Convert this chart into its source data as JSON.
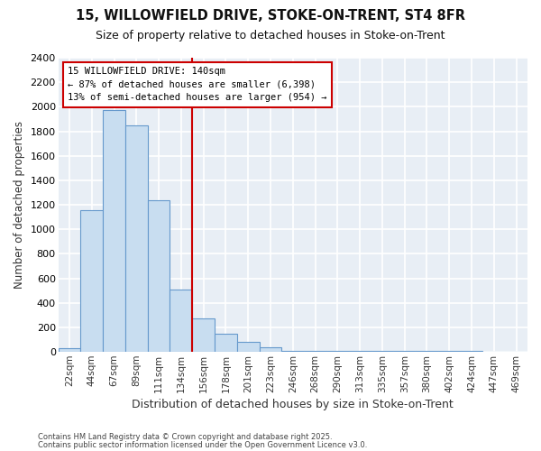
{
  "title1": "15, WILLOWFIELD DRIVE, STOKE-ON-TRENT, ST4 8FR",
  "title2": "Size of property relative to detached houses in Stoke-on-Trent",
  "xlabel": "Distribution of detached houses by size in Stoke-on-Trent",
  "ylabel": "Number of detached properties",
  "categories": [
    "22sqm",
    "44sqm",
    "67sqm",
    "89sqm",
    "111sqm",
    "134sqm",
    "156sqm",
    "178sqm",
    "201sqm",
    "223sqm",
    "246sqm",
    "268sqm",
    "290sqm",
    "313sqm",
    "335sqm",
    "357sqm",
    "380sqm",
    "402sqm",
    "424sqm",
    "447sqm",
    "469sqm"
  ],
  "values": [
    30,
    1160,
    1970,
    1850,
    1240,
    510,
    270,
    150,
    85,
    40,
    10,
    10,
    5,
    5,
    5,
    5,
    5,
    5,
    5,
    3,
    2
  ],
  "bar_color": "#c8ddf0",
  "bar_edge_color": "#6699cc",
  "vline_x": 5.5,
  "vline_color": "#cc0000",
  "annotation_text": "15 WILLOWFIELD DRIVE: 140sqm\n← 87% of detached houses are smaller (6,398)\n13% of semi-detached houses are larger (954) →",
  "annotation_box_color": "#cc0000",
  "ylim": [
    0,
    2400
  ],
  "yticks": [
    0,
    200,
    400,
    600,
    800,
    1000,
    1200,
    1400,
    1600,
    1800,
    2000,
    2200,
    2400
  ],
  "background_color": "#ffffff",
  "plot_bg_color": "#e8eef5",
  "grid_color": "#ffffff",
  "footer1": "Contains HM Land Registry data © Crown copyright and database right 2025.",
  "footer2": "Contains public sector information licensed under the Open Government Licence v3.0."
}
